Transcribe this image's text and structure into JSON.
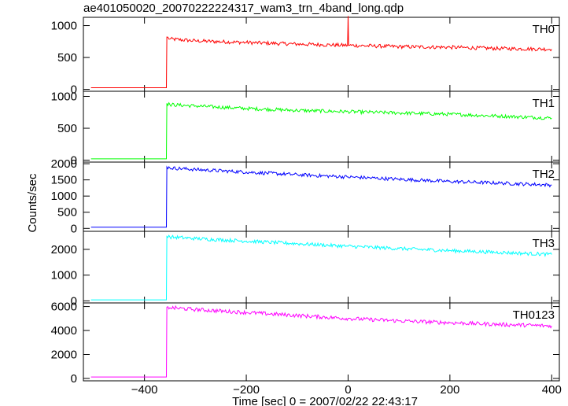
{
  "chart_data": {
    "type": "line",
    "title": "ae401050020_20070222224317_wam3_trn_4band_long.qdp",
    "xlabel": "Time [sec] 0 = 2007/02/22 22:43:17",
    "ylabel": "Counts/sec",
    "xlim": [
      -520,
      415
    ],
    "xticks": [
      -400,
      -200,
      0,
      200,
      400
    ],
    "grid": false,
    "series": [
      {
        "name": "TH0",
        "color": "#ff0000",
        "ylim": [
          -30,
          1130
        ],
        "yticks": [
          0,
          500,
          1000
        ],
        "x": [
          -505,
          -357,
          -356,
          -350,
          -300,
          -200,
          -100,
          -50,
          -1,
          0,
          1,
          50,
          100,
          200,
          300,
          400
        ],
        "values": [
          25,
          25,
          820,
          790,
          760,
          735,
          710,
          700,
          690,
          1150,
          690,
          680,
          670,
          660,
          640,
          630
        ]
      },
      {
        "name": "TH1",
        "color": "#00ff00",
        "ylim": [
          -30,
          1080
        ],
        "yticks": [
          0,
          500,
          1000
        ],
        "x": [
          -505,
          -357,
          -356,
          -350,
          -300,
          -200,
          -100,
          0,
          100,
          200,
          300,
          400
        ],
        "values": [
          20,
          20,
          890,
          870,
          850,
          810,
          780,
          760,
          740,
          720,
          690,
          660
        ]
      },
      {
        "name": "TH2",
        "color": "#0000ff",
        "ylim": [
          -90,
          2050
        ],
        "yticks": [
          0,
          500,
          1000,
          1500,
          2000
        ],
        "x": [
          -505,
          -357,
          -356,
          -350,
          -300,
          -200,
          -100,
          0,
          100,
          200,
          300,
          400
        ],
        "values": [
          40,
          40,
          1900,
          1870,
          1820,
          1740,
          1660,
          1590,
          1520,
          1450,
          1400,
          1340
        ]
      },
      {
        "name": "TH3",
        "color": "#00ffff",
        "ylim": [
          -80,
          2700
        ],
        "yticks": [
          0,
          1000,
          2000
        ],
        "x": [
          -505,
          -357,
          -356,
          -350,
          -300,
          -200,
          -100,
          0,
          100,
          200,
          300,
          400
        ],
        "values": [
          40,
          40,
          2500,
          2480,
          2420,
          2320,
          2220,
          2120,
          2030,
          1950,
          1880,
          1800
        ]
      },
      {
        "name": "TH0123",
        "color": "#ff00ff",
        "ylim": [
          -200,
          6300
        ],
        "yticks": [
          0,
          2000,
          4000,
          6000
        ],
        "x": [
          -505,
          -357,
          -356,
          -350,
          -300,
          -200,
          -100,
          0,
          100,
          200,
          300,
          400
        ],
        "values": [
          120,
          120,
          5950,
          5900,
          5750,
          5500,
          5250,
          5000,
          4800,
          4650,
          4500,
          4380
        ]
      }
    ]
  }
}
